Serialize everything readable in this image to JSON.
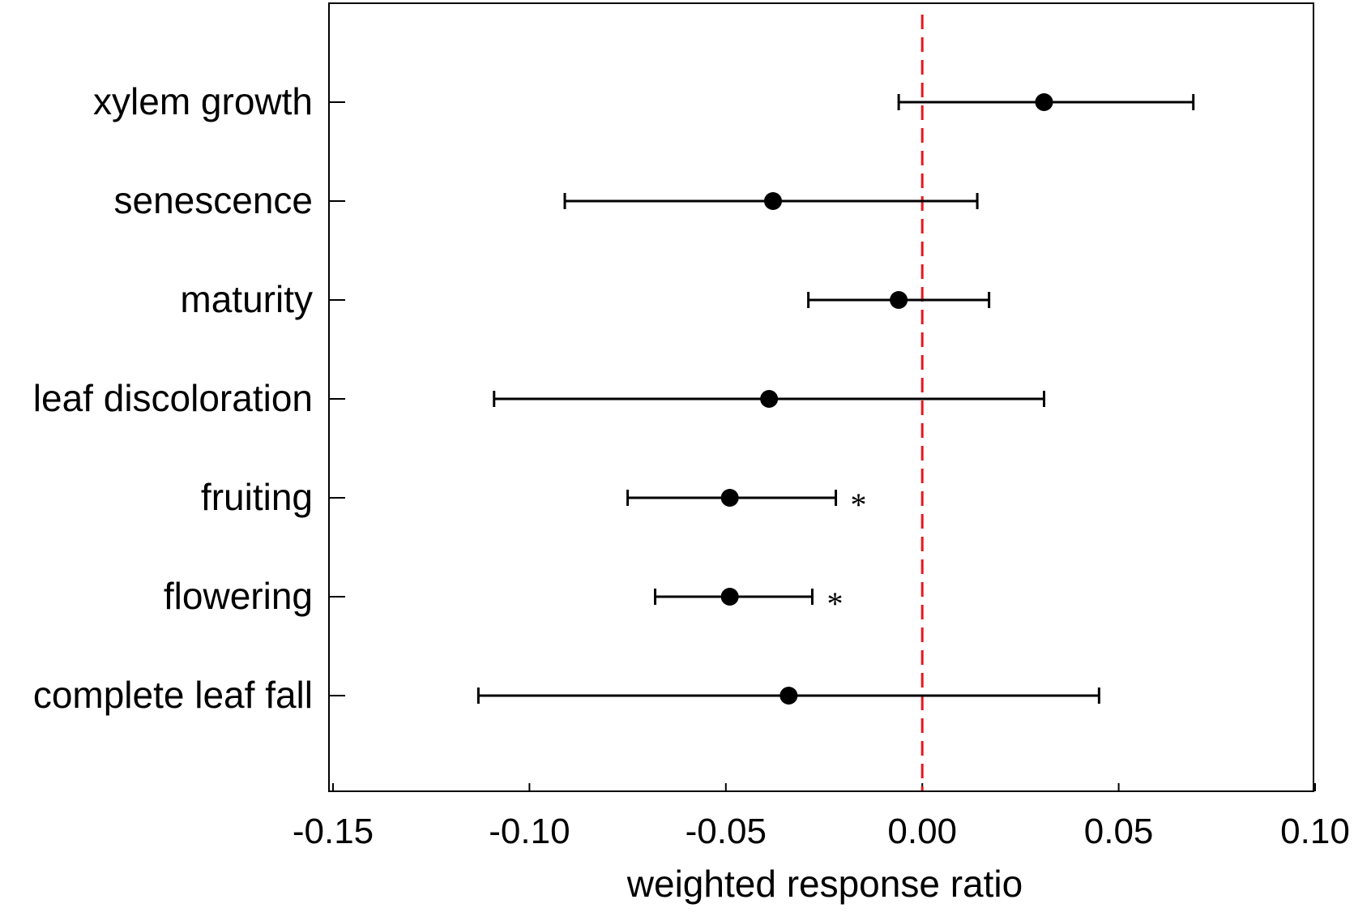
{
  "chart_data": {
    "type": "forest",
    "xlabel": "weighted response ratio",
    "xlim": [
      -0.15,
      0.1
    ],
    "x_ticks": [
      "-0.15",
      "-0.10",
      "-0.05",
      "0.00",
      "0.05",
      "0.10"
    ],
    "x_tick_values": [
      -0.15,
      -0.1,
      -0.05,
      0.0,
      0.05,
      0.1
    ],
    "reference_line": {
      "x": 0.0,
      "color": "#e8171b",
      "style": "dashed"
    },
    "marker_color": "#000000",
    "categories": [
      {
        "label": "xylem growth",
        "estimate": 0.031,
        "lower": -0.006,
        "upper": 0.069,
        "significance": ""
      },
      {
        "label": "senescence",
        "estimate": -0.038,
        "lower": -0.091,
        "upper": 0.014,
        "significance": ""
      },
      {
        "label": "maturity",
        "estimate": -0.006,
        "lower": -0.029,
        "upper": 0.017,
        "significance": ""
      },
      {
        "label": "leaf discoloration",
        "estimate": -0.039,
        "lower": -0.109,
        "upper": 0.031,
        "significance": ""
      },
      {
        "label": "fruiting",
        "estimate": -0.049,
        "lower": -0.075,
        "upper": -0.022,
        "significance": "*"
      },
      {
        "label": "flowering",
        "estimate": -0.049,
        "lower": -0.068,
        "upper": -0.028,
        "significance": "*"
      },
      {
        "label": "complete leaf fall",
        "estimate": -0.034,
        "lower": -0.113,
        "upper": 0.045,
        "significance": ""
      }
    ]
  }
}
